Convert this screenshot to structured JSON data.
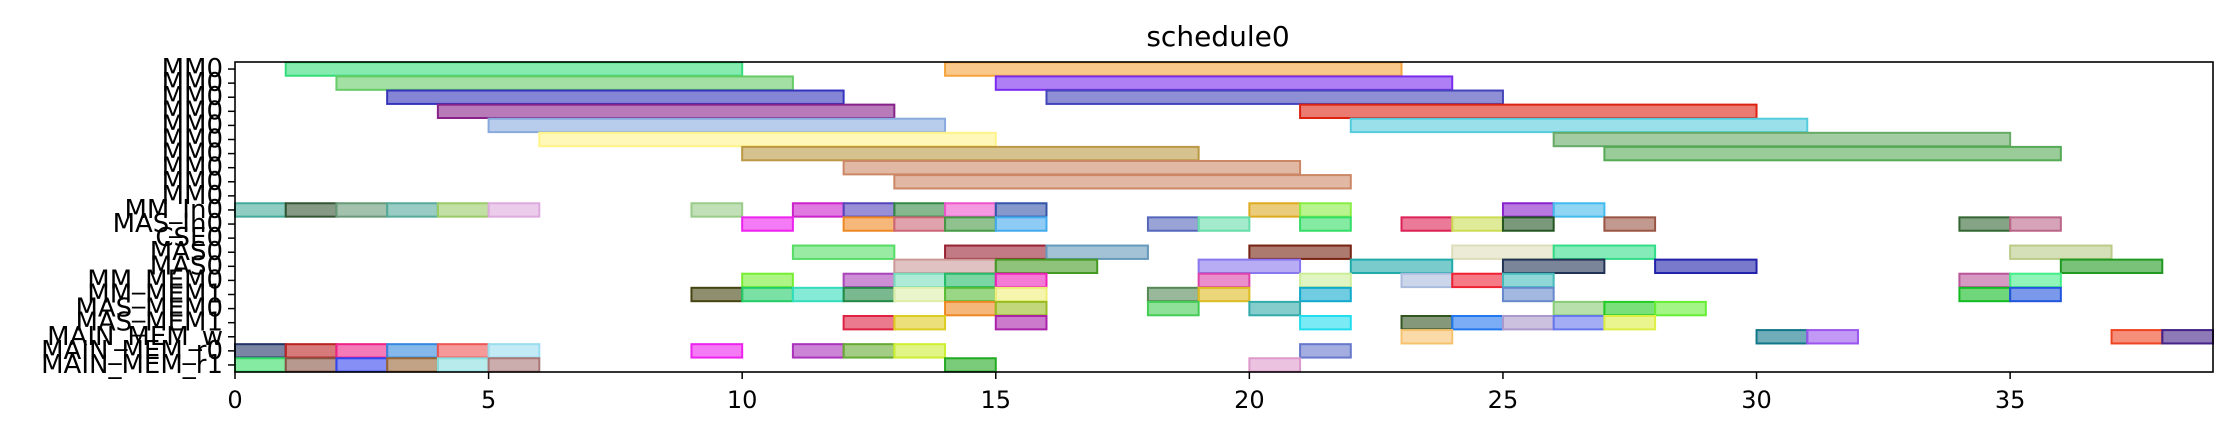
{
  "chart_data": {
    "type": "gantt",
    "title": "schedule0",
    "xlabel": "",
    "ylabel": "",
    "xlim": [
      0,
      39
    ],
    "x_ticks": [
      0,
      5,
      10,
      15,
      20,
      25,
      30,
      35
    ],
    "y_labels": [
      "MM0",
      "MM0",
      "MM0",
      "MM0",
      "MM0",
      "MM0",
      "MM0",
      "MM0",
      "MM0",
      "MM0",
      "MM_In0",
      "MAS_In0",
      "CSE0",
      "MAS0",
      "MAS0",
      "MM_MEM0",
      "MM_MEM1",
      "MAS_MEM0",
      "MAS_MEM1",
      "MAIN_MEM_w",
      "MAIN_MEM_r0",
      "MAIN_MEM_r1"
    ],
    "tasks": [
      {
        "row": 0,
        "start": 1,
        "end": 10,
        "color": "#33dd7a"
      },
      {
        "row": 0,
        "start": 14,
        "end": 23,
        "color": "#f6a33e"
      },
      {
        "row": 1,
        "start": 2,
        "end": 11,
        "color": "#66cc66"
      },
      {
        "row": 1,
        "start": 15,
        "end": 24,
        "color": "#7a2cee"
      },
      {
        "row": 2,
        "start": 3,
        "end": 12,
        "color": "#3333bb"
      },
      {
        "row": 2,
        "start": 16,
        "end": 25,
        "color": "#4444bb"
      },
      {
        "row": 3,
        "start": 4,
        "end": 13,
        "color": "#882288"
      },
      {
        "row": 3,
        "start": 21,
        "end": 30,
        "color": "#dd2211"
      },
      {
        "row": 4,
        "start": 5,
        "end": 14,
        "color": "#88aadd"
      },
      {
        "row": 4,
        "start": 22,
        "end": 31,
        "color": "#55ccdd"
      },
      {
        "row": 5,
        "start": 6,
        "end": 15,
        "color": "#fff488"
      },
      {
        "row": 5,
        "start": 26,
        "end": 35,
        "color": "#66aa66"
      },
      {
        "row": 6,
        "start": 10,
        "end": 19,
        "color": "#bb9944"
      },
      {
        "row": 6,
        "start": 27,
        "end": 36,
        "color": "#55aa55"
      },
      {
        "row": 7,
        "start": 12,
        "end": 21,
        "color": "#cc8866"
      },
      {
        "row": 8,
        "start": 13,
        "end": 22,
        "color": "#cc8866"
      },
      {
        "row": 10,
        "start": 0,
        "end": 1,
        "color": "#44aa99"
      },
      {
        "row": 10,
        "start": 1,
        "end": 2,
        "color": "#335533"
      },
      {
        "row": 10,
        "start": 2,
        "end": 3,
        "color": "#669977"
      },
      {
        "row": 10,
        "start": 3,
        "end": 4,
        "color": "#55aa99"
      },
      {
        "row": 10,
        "start": 4,
        "end": 5,
        "color": "#99cc66"
      },
      {
        "row": 10,
        "start": 5,
        "end": 6,
        "color": "#ddaadd"
      },
      {
        "row": 10,
        "start": 9,
        "end": 10,
        "color": "#99cc88"
      },
      {
        "row": 10,
        "start": 11,
        "end": 12,
        "color": "#cc22cc"
      },
      {
        "row": 10,
        "start": 12,
        "end": 13,
        "color": "#5544bb"
      },
      {
        "row": 10,
        "start": 13,
        "end": 14,
        "color": "#338844"
      },
      {
        "row": 10,
        "start": 14,
        "end": 15,
        "color": "#ee55cc"
      },
      {
        "row": 10,
        "start": 15,
        "end": 16,
        "color": "#3355aa"
      },
      {
        "row": 10,
        "start": 20,
        "end": 21,
        "color": "#ddaa22"
      },
      {
        "row": 10,
        "start": 21,
        "end": 22,
        "color": "#88ee44"
      },
      {
        "row": 10,
        "start": 25,
        "end": 26,
        "color": "#8822cc"
      },
      {
        "row": 10,
        "start": 26,
        "end": 27,
        "color": "#44bbee"
      },
      {
        "row": 11,
        "start": 10,
        "end": 11,
        "color": "#ee22ee"
      },
      {
        "row": 11,
        "start": 12,
        "end": 13,
        "color": "#ee8822"
      },
      {
        "row": 11,
        "start": 13,
        "end": 14,
        "color": "#cc6677"
      },
      {
        "row": 11,
        "start": 14,
        "end": 15,
        "color": "#449944"
      },
      {
        "row": 11,
        "start": 15,
        "end": 16,
        "color": "#44aaee"
      },
      {
        "row": 11,
        "start": 18,
        "end": 19,
        "color": "#5566bb"
      },
      {
        "row": 11,
        "start": 19,
        "end": 20,
        "color": "#66ddaa"
      },
      {
        "row": 11,
        "start": 21,
        "end": 22,
        "color": "#33dd66"
      },
      {
        "row": 11,
        "start": 23,
        "end": 24,
        "color": "#dd2255"
      },
      {
        "row": 11,
        "start": 24,
        "end": 25,
        "color": "#ccdd55"
      },
      {
        "row": 11,
        "start": 25,
        "end": 26,
        "color": "#225522"
      },
      {
        "row": 11,
        "start": 27,
        "end": 28,
        "color": "#995544"
      },
      {
        "row": 11,
        "start": 34,
        "end": 35,
        "color": "#336633"
      },
      {
        "row": 11,
        "start": 35,
        "end": 36,
        "color": "#bb6688"
      },
      {
        "row": 13,
        "start": 11,
        "end": 13,
        "color": "#55dd66"
      },
      {
        "row": 13,
        "start": 14,
        "end": 16,
        "color": "#992233"
      },
      {
        "row": 13,
        "start": 16,
        "end": 18,
        "color": "#6699bb"
      },
      {
        "row": 13,
        "start": 20,
        "end": 22,
        "color": "#772211"
      },
      {
        "row": 13,
        "start": 24,
        "end": 26,
        "color": "#ddddbb"
      },
      {
        "row": 13,
        "start": 26,
        "end": 28,
        "color": "#33dd88"
      },
      {
        "row": 13,
        "start": 35,
        "end": 37,
        "color": "#bbcc88"
      },
      {
        "row": 14,
        "start": 13,
        "end": 15,
        "color": "#cc9999"
      },
      {
        "row": 14,
        "start": 15,
        "end": 17,
        "color": "#449922"
      },
      {
        "row": 14,
        "start": 19,
        "end": 21,
        "color": "#8877ee"
      },
      {
        "row": 14,
        "start": 22,
        "end": 24,
        "color": "#22aaaa"
      },
      {
        "row": 14,
        "start": 25,
        "end": 27,
        "color": "#223355"
      },
      {
        "row": 14,
        "start": 28,
        "end": 30,
        "color": "#2222aa"
      },
      {
        "row": 14,
        "start": 36,
        "end": 38,
        "color": "#229922"
      },
      {
        "row": 15,
        "start": 10,
        "end": 11,
        "color": "#77ee33"
      },
      {
        "row": 15,
        "start": 12,
        "end": 13,
        "color": "#aa44bb"
      },
      {
        "row": 15,
        "start": 13,
        "end": 14,
        "color": "#77ddbb"
      },
      {
        "row": 15,
        "start": 14,
        "end": 15,
        "color": "#22bb66"
      },
      {
        "row": 15,
        "start": 15,
        "end": 16,
        "color": "#ee22bb"
      },
      {
        "row": 15,
        "start": 19,
        "end": 20,
        "color": "#dd44aa"
      },
      {
        "row": 15,
        "start": 21,
        "end": 22,
        "color": "#ccee99"
      },
      {
        "row": 15,
        "start": 23,
        "end": 24,
        "color": "#aabbdd"
      },
      {
        "row": 15,
        "start": 24,
        "end": 25,
        "color": "#ee2233"
      },
      {
        "row": 15,
        "start": 25,
        "end": 26,
        "color": "#44bbbb"
      },
      {
        "row": 15,
        "start": 34,
        "end": 35,
        "color": "#bb5599"
      },
      {
        "row": 15,
        "start": 35,
        "end": 36,
        "color": "#44ee88"
      },
      {
        "row": 16,
        "start": 9,
        "end": 10,
        "color": "#444411"
      },
      {
        "row": 16,
        "start": 10,
        "end": 11,
        "color": "#22cc66"
      },
      {
        "row": 16,
        "start": 11,
        "end": 12,
        "color": "#33ddbb"
      },
      {
        "row": 16,
        "start": 12,
        "end": 13,
        "color": "#228844"
      },
      {
        "row": 16,
        "start": 13,
        "end": 14,
        "color": "#ddeeaa"
      },
      {
        "row": 16,
        "start": 14,
        "end": 15,
        "color": "#55bb33"
      },
      {
        "row": 16,
        "start": 15,
        "end": 16,
        "color": "#eeee77"
      },
      {
        "row": 16,
        "start": 18,
        "end": 19,
        "color": "#558855"
      },
      {
        "row": 16,
        "start": 19,
        "end": 20,
        "color": "#ddbb22"
      },
      {
        "row": 16,
        "start": 21,
        "end": 22,
        "color": "#11aacc"
      },
      {
        "row": 16,
        "start": 25,
        "end": 26,
        "color": "#6688cc"
      },
      {
        "row": 16,
        "start": 34,
        "end": 35,
        "color": "#11bb22"
      },
      {
        "row": 16,
        "start": 35,
        "end": 36,
        "color": "#2255dd"
      },
      {
        "row": 17,
        "start": 14,
        "end": 15,
        "color": "#ee8822"
      },
      {
        "row": 17,
        "start": 15,
        "end": 16,
        "color": "#99bb22"
      },
      {
        "row": 17,
        "start": 18,
        "end": 19,
        "color": "#44cc55"
      },
      {
        "row": 17,
        "start": 20,
        "end": 21,
        "color": "#33aaaa"
      },
      {
        "row": 17,
        "start": 26,
        "end": 27,
        "color": "#88cc77"
      },
      {
        "row": 17,
        "start": 27,
        "end": 28,
        "color": "#22cc22"
      },
      {
        "row": 17,
        "start": 28,
        "end": 29,
        "color": "#66ee33"
      },
      {
        "row": 18,
        "start": 12,
        "end": 13,
        "color": "#dd2244"
      },
      {
        "row": 18,
        "start": 13,
        "end": 14,
        "color": "#ddcc22"
      },
      {
        "row": 18,
        "start": 15,
        "end": 16,
        "color": "#aa22aa"
      },
      {
        "row": 18,
        "start": 21,
        "end": 22,
        "color": "#22ddee"
      },
      {
        "row": 18,
        "start": 23,
        "end": 24,
        "color": "#335522"
      },
      {
        "row": 18,
        "start": 24,
        "end": 25,
        "color": "#2277ee"
      },
      {
        "row": 18,
        "start": 25,
        "end": 26,
        "color": "#aa99cc"
      },
      {
        "row": 18,
        "start": 26,
        "end": 27,
        "color": "#6677ee"
      },
      {
        "row": 18,
        "start": 27,
        "end": 28,
        "color": "#ddee44"
      },
      {
        "row": 19,
        "start": 23,
        "end": 24,
        "color": "#f6c26e"
      },
      {
        "row": 19,
        "start": 30,
        "end": 31,
        "color": "#117788"
      },
      {
        "row": 19,
        "start": 31,
        "end": 32,
        "color": "#9955ee"
      },
      {
        "row": 19,
        "start": 37,
        "end": 38,
        "color": "#ee4422"
      },
      {
        "row": 19,
        "start": 38,
        "end": 39,
        "color": "#442288"
      },
      {
        "row": 20,
        "start": 0,
        "end": 1,
        "color": "#223366"
      },
      {
        "row": 20,
        "start": 1,
        "end": 2,
        "color": "#bb2222"
      },
      {
        "row": 20,
        "start": 2,
        "end": 3,
        "color": "#ee2288"
      },
      {
        "row": 20,
        "start": 3,
        "end": 4,
        "color": "#3388dd"
      },
      {
        "row": 20,
        "start": 4,
        "end": 5,
        "color": "#ee5555"
      },
      {
        "row": 20,
        "start": 5,
        "end": 6,
        "color": "#99ddee"
      },
      {
        "row": 20,
        "start": 9,
        "end": 10,
        "color": "#ee22ee"
      },
      {
        "row": 20,
        "start": 11,
        "end": 12,
        "color": "#aa33bb"
      },
      {
        "row": 20,
        "start": 12,
        "end": 13,
        "color": "#66aa33"
      },
      {
        "row": 20,
        "start": 13,
        "end": 14,
        "color": "#ccee33"
      },
      {
        "row": 20,
        "start": 21,
        "end": 22,
        "color": "#6677cc"
      },
      {
        "row": 21,
        "start": 0,
        "end": 1,
        "color": "#33dd66"
      },
      {
        "row": 21,
        "start": 1,
        "end": 2,
        "color": "#885544"
      },
      {
        "row": 21,
        "start": 2,
        "end": 3,
        "color": "#3344ee"
      },
      {
        "row": 21,
        "start": 3,
        "end": 4,
        "color": "#996633"
      },
      {
        "row": 21,
        "start": 4,
        "end": 5,
        "color": "#88dddd"
      },
      {
        "row": 21,
        "start": 5,
        "end": 6,
        "color": "#aa7777"
      },
      {
        "row": 21,
        "start": 14,
        "end": 15,
        "color": "#22aa22"
      },
      {
        "row": 21,
        "start": 20,
        "end": 21,
        "color": "#dd99cc"
      }
    ]
  }
}
